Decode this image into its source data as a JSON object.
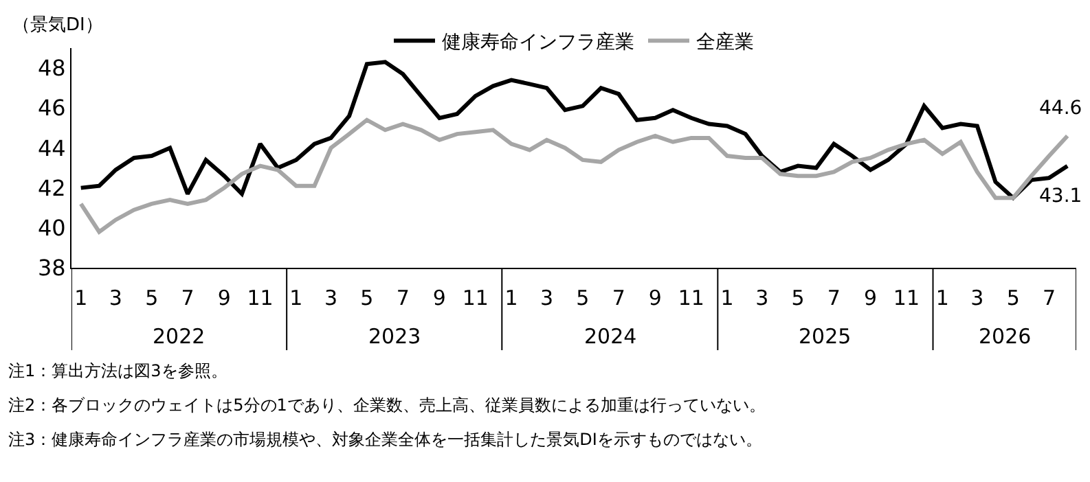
{
  "chart_data": {
    "type": "line",
    "ylabel": "（景気DI）",
    "ylim": [
      38,
      49
    ],
    "yticks": [
      38,
      40,
      42,
      44,
      46,
      48
    ],
    "grid": false,
    "legend": "top",
    "xlim": [
      "2021-12-16",
      "2026-08-16"
    ],
    "x": [
      "2022-01",
      "2022-02",
      "2022-03",
      "2022-04",
      "2022-05",
      "2022-06",
      "2022-07",
      "2022-08",
      "2022-09",
      "2022-10",
      "2022-11",
      "2022-12",
      "2023-01",
      "2023-02",
      "2023-03",
      "2023-04",
      "2023-05",
      "2023-06",
      "2023-07",
      "2023-08",
      "2023-09",
      "2023-10",
      "2023-11",
      "2023-12",
      "2024-01",
      "2024-02",
      "2024-03",
      "2024-04",
      "2024-05",
      "2024-06",
      "2024-07",
      "2024-08",
      "2024-09",
      "2024-10",
      "2024-11",
      "2024-12",
      "2025-01",
      "2025-02",
      "2025-03",
      "2025-04",
      "2025-05",
      "2025-06",
      "2025-07",
      "2025-08",
      "2025-09",
      "2025-10",
      "2025-11",
      "2025-12",
      "2026-01",
      "2026-02",
      "2026-03",
      "2026-04",
      "2026-05",
      "2026-06",
      "2026-07",
      "2026-08"
    ],
    "xticks": [
      {
        "value": "2022-01",
        "label": "1"
      },
      {
        "value": "2022-03",
        "label": "3"
      },
      {
        "value": "2022-05",
        "label": "5"
      },
      {
        "value": "2022-07",
        "label": "7"
      },
      {
        "value": "2022-09",
        "label": "9"
      },
      {
        "value": "2022-11",
        "label": "11"
      },
      {
        "value": "2023-01",
        "label": "1"
      },
      {
        "value": "2023-03",
        "label": "3"
      },
      {
        "value": "2023-05",
        "label": "5"
      },
      {
        "value": "2023-07",
        "label": "7"
      },
      {
        "value": "2023-09",
        "label": "9"
      },
      {
        "value": "2023-11",
        "label": "11"
      },
      {
        "value": "2024-01",
        "label": "1"
      },
      {
        "value": "2024-03",
        "label": "3"
      },
      {
        "value": "2024-05",
        "label": "5"
      },
      {
        "value": "2024-07",
        "label": "7"
      },
      {
        "value": "2024-09",
        "label": "9"
      },
      {
        "value": "2024-11",
        "label": "11"
      },
      {
        "value": "2025-01",
        "label": "1"
      },
      {
        "value": "2025-03",
        "label": "3"
      },
      {
        "value": "2025-05",
        "label": "5"
      },
      {
        "value": "2025-07",
        "label": "7"
      },
      {
        "value": "2025-09",
        "label": "9"
      },
      {
        "value": "2025-11",
        "label": "11"
      },
      {
        "value": "2026-01",
        "label": "1"
      },
      {
        "value": "2026-03",
        "label": "3"
      },
      {
        "value": "2026-05",
        "label": "5"
      },
      {
        "value": "2026-07",
        "label": "7"
      }
    ],
    "series": [
      {
        "name": "健康寿命インフラ産業",
        "color": "#000000",
        "values": [
          42.0,
          42.1,
          42.9,
          43.5,
          43.6,
          44.0,
          41.7,
          43.4,
          42.6,
          41.7,
          44.2,
          43.0,
          43.4,
          44.2,
          44.5,
          45.6,
          48.2,
          48.3,
          47.7,
          46.6,
          45.5,
          45.7,
          46.6,
          47.1,
          47.4,
          47.2,
          47.0,
          45.9,
          46.1,
          47.0,
          46.7,
          45.4,
          45.5,
          45.9,
          45.5,
          45.2,
          45.1,
          44.7,
          43.6,
          42.8,
          43.1,
          43.0,
          44.2,
          43.6,
          42.9,
          43.4,
          44.2,
          46.1,
          45.0,
          45.2,
          45.1,
          42.3,
          41.5,
          42.4,
          42.5,
          43.1
        ],
        "value_labels": [
          null,
          null,
          null,
          null,
          null,
          null,
          null,
          null,
          null,
          null,
          null,
          null,
          null,
          null,
          null,
          null,
          null,
          null,
          null,
          null,
          null,
          null,
          null,
          null,
          null,
          null,
          null,
          null,
          null,
          null,
          null,
          null,
          null,
          null,
          null,
          null,
          null,
          null,
          null,
          null,
          null,
          null,
          null,
          null,
          null,
          null,
          null,
          null,
          null,
          null,
          null,
          null,
          null,
          null,
          null,
          "43.1"
        ]
      },
      {
        "name": "全産業",
        "color": "#a6a6a6",
        "values": [
          41.2,
          39.8,
          40.4,
          40.9,
          41.2,
          41.4,
          41.2,
          41.4,
          42.0,
          42.7,
          43.1,
          42.9,
          42.1,
          42.1,
          44.0,
          44.7,
          45.4,
          44.9,
          45.2,
          44.9,
          44.4,
          44.7,
          44.8,
          44.9,
          44.2,
          43.9,
          44.4,
          44.0,
          43.4,
          43.3,
          43.9,
          44.3,
          44.6,
          44.3,
          44.5,
          44.5,
          43.6,
          43.5,
          43.5,
          42.7,
          42.6,
          42.6,
          42.8,
          43.3,
          43.5,
          43.9,
          44.2,
          44.4,
          43.7,
          44.3,
          42.8,
          41.5,
          41.5,
          42.6,
          43.6,
          44.6
        ],
        "value_labels": [
          null,
          null,
          null,
          null,
          null,
          null,
          null,
          null,
          null,
          null,
          null,
          null,
          null,
          null,
          null,
          null,
          null,
          null,
          null,
          null,
          null,
          null,
          null,
          null,
          null,
          null,
          null,
          null,
          null,
          null,
          null,
          null,
          null,
          null,
          null,
          null,
          null,
          null,
          null,
          null,
          null,
          null,
          null,
          null,
          null,
          null,
          null,
          null,
          null,
          null,
          null,
          null,
          null,
          null,
          null,
          "44.6"
        ]
      }
    ],
    "annotations": [
      "2022",
      "2023",
      "2024",
      "2025",
      "2026",
      "注1：算出方法は図3を参照。",
      "注2：各ブロックのウェイトは5分の1であり、企業数、売上高、従業員数による加重は行っていない。",
      "注3：健康寿命インフラ産業の市場規模や、対象企業全体を一括集計した景気DIを示すものではない。"
    ]
  }
}
